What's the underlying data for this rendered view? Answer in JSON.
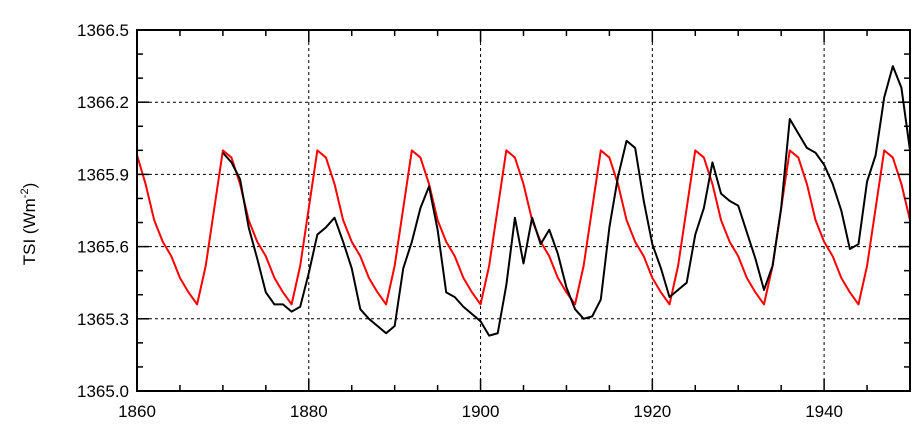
{
  "chart_data": {
    "type": "line",
    "ylabel": "TSI (Wm",
    "ylabel_superscript": "-2",
    "ylabel_close": ")",
    "xlim": [
      1860,
      1950
    ],
    "ylim": [
      1365.0,
      1366.5
    ],
    "x_ticks": [
      1860,
      1880,
      1900,
      1920,
      1940
    ],
    "x_tick_labels": [
      "1860",
      "1880",
      "1900",
      "1920",
      "1940"
    ],
    "y_ticks": [
      1365.0,
      1365.3,
      1365.6,
      1365.9,
      1366.2,
      1366.5
    ],
    "y_tick_labels": [
      "1365.0",
      "1365.3",
      "1365.6",
      "1365.9",
      "1366.2",
      "1366.5"
    ],
    "grid": true,
    "series": [
      {
        "color": "#000000",
        "x": [
          1870,
          1871,
          1872,
          1873,
          1874,
          1875,
          1876,
          1877,
          1878,
          1879,
          1880,
          1881,
          1882,
          1883,
          1884,
          1885,
          1886,
          1887,
          1888,
          1889,
          1890,
          1891,
          1892,
          1893,
          1894,
          1895,
          1896,
          1897,
          1898,
          1899,
          1900,
          1901,
          1902,
          1903,
          1904,
          1905,
          1906,
          1907,
          1908,
          1909,
          1910,
          1911,
          1912,
          1913,
          1914,
          1915,
          1916,
          1917,
          1918,
          1919,
          1920,
          1921,
          1922,
          1923,
          1924,
          1925,
          1926,
          1927,
          1928,
          1929,
          1930,
          1931,
          1932,
          1933,
          1934,
          1935,
          1936,
          1937,
          1938,
          1939,
          1940,
          1941,
          1942,
          1943,
          1944,
          1945,
          1946,
          1947,
          1948,
          1949,
          1950
        ],
        "y": [
          1365.99,
          1365.95,
          1365.88,
          1365.68,
          1365.55,
          1365.41,
          1365.36,
          1365.36,
          1365.33,
          1365.35,
          1365.49,
          1365.65,
          1365.68,
          1365.72,
          1365.62,
          1365.51,
          1365.34,
          1365.3,
          1365.27,
          1365.24,
          1365.27,
          1365.51,
          1365.62,
          1365.76,
          1365.85,
          1365.67,
          1365.41,
          1365.39,
          1365.35,
          1365.32,
          1365.29,
          1365.23,
          1365.24,
          1365.44,
          1365.72,
          1365.53,
          1365.72,
          1365.61,
          1365.67,
          1365.57,
          1365.43,
          1365.34,
          1365.3,
          1365.31,
          1365.38,
          1365.68,
          1365.89,
          1366.04,
          1366.01,
          1365.79,
          1365.61,
          1365.51,
          1365.39,
          1365.42,
          1365.45,
          1365.65,
          1365.76,
          1365.95,
          1365.82,
          1365.79,
          1365.77,
          1365.66,
          1365.55,
          1365.42,
          1365.52,
          1365.76,
          1366.13,
          1366.07,
          1366.01,
          1365.99,
          1365.94,
          1365.86,
          1365.75,
          1365.59,
          1365.61,
          1365.87,
          1365.98,
          1366.22,
          1366.35,
          1366.26,
          1366.0
        ]
      },
      {
        "color": "#ff0000",
        "x": [
          1860,
          1861,
          1862,
          1863,
          1864,
          1865,
          1866,
          1867,
          1868,
          1869,
          1870,
          1871,
          1872,
          1873,
          1874,
          1875,
          1876,
          1877,
          1878,
          1879,
          1880,
          1881,
          1882,
          1883,
          1884,
          1885,
          1886,
          1887,
          1888,
          1889,
          1890,
          1891,
          1892,
          1893,
          1894,
          1895,
          1896,
          1897,
          1898,
          1899,
          1900,
          1901,
          1902,
          1903,
          1904,
          1905,
          1906,
          1907,
          1908,
          1909,
          1910,
          1911,
          1912,
          1913,
          1914,
          1915,
          1916,
          1917,
          1918,
          1919,
          1920,
          1921,
          1922,
          1923,
          1924,
          1925,
          1926,
          1927,
          1928,
          1929,
          1930,
          1931,
          1932,
          1933,
          1934,
          1935,
          1936,
          1937,
          1938,
          1939,
          1940,
          1941,
          1942,
          1943,
          1944,
          1945,
          1946,
          1947,
          1948,
          1949,
          1950
        ],
        "y": [
          1365.98,
          1365.86,
          1365.71,
          1365.62,
          1365.56,
          1365.47,
          1365.41,
          1365.36,
          1365.52,
          1365.76,
          1366.0,
          1365.97,
          1365.86,
          1365.71,
          1365.62,
          1365.56,
          1365.47,
          1365.41,
          1365.36,
          1365.52,
          1365.76,
          1366.0,
          1365.97,
          1365.86,
          1365.71,
          1365.62,
          1365.56,
          1365.47,
          1365.41,
          1365.36,
          1365.52,
          1365.76,
          1366.0,
          1365.97,
          1365.86,
          1365.71,
          1365.62,
          1365.56,
          1365.47,
          1365.41,
          1365.36,
          1365.52,
          1365.76,
          1366.0,
          1365.97,
          1365.86,
          1365.71,
          1365.62,
          1365.56,
          1365.47,
          1365.41,
          1365.36,
          1365.52,
          1365.76,
          1366.0,
          1365.97,
          1365.86,
          1365.71,
          1365.62,
          1365.56,
          1365.47,
          1365.41,
          1365.36,
          1365.52,
          1365.76,
          1366.0,
          1365.97,
          1365.86,
          1365.71,
          1365.62,
          1365.56,
          1365.47,
          1365.41,
          1365.36,
          1365.52,
          1365.76,
          1366.0,
          1365.97,
          1365.86,
          1365.71,
          1365.62,
          1365.56,
          1365.47,
          1365.41,
          1365.36,
          1365.52,
          1365.76,
          1366.0,
          1365.97,
          1365.86,
          1365.71
        ]
      }
    ]
  }
}
